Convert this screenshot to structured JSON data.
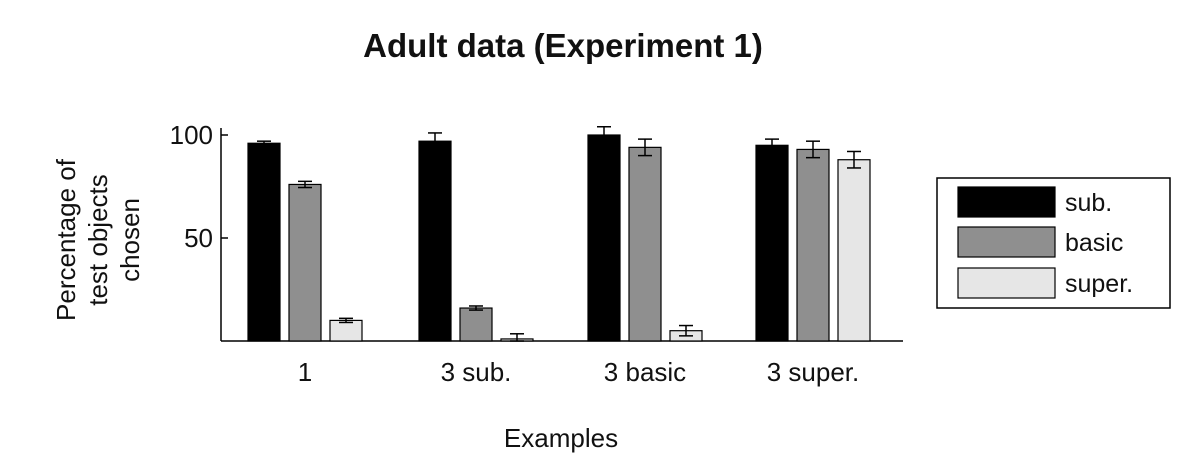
{
  "chart_data": {
    "type": "bar",
    "title": "Adult data (Experiment 1)",
    "xlabel": "Examples",
    "ylabel_lines": [
      "Percentage of",
      "test objects",
      "chosen"
    ],
    "categories": [
      "1",
      "3 sub.",
      "3 basic",
      "3 super."
    ],
    "yticks": [
      50,
      100
    ],
    "ylim": [
      0,
      100
    ],
    "grid": false,
    "legend_position": "right",
    "series": [
      {
        "name": "sub.",
        "color": "#000000",
        "values": [
          96,
          97,
          100,
          95
        ],
        "errors": [
          1,
          4,
          4,
          3
        ]
      },
      {
        "name": "basic",
        "color": "#8f8f8f",
        "values": [
          76,
          16,
          94,
          93
        ],
        "errors": [
          1.5,
          1,
          4,
          4
        ]
      },
      {
        "name": "super.",
        "color": "#e6e6e6",
        "values": [
          10,
          1,
          5,
          88
        ],
        "errors": [
          1,
          2.5,
          2.5,
          4
        ]
      }
    ]
  }
}
